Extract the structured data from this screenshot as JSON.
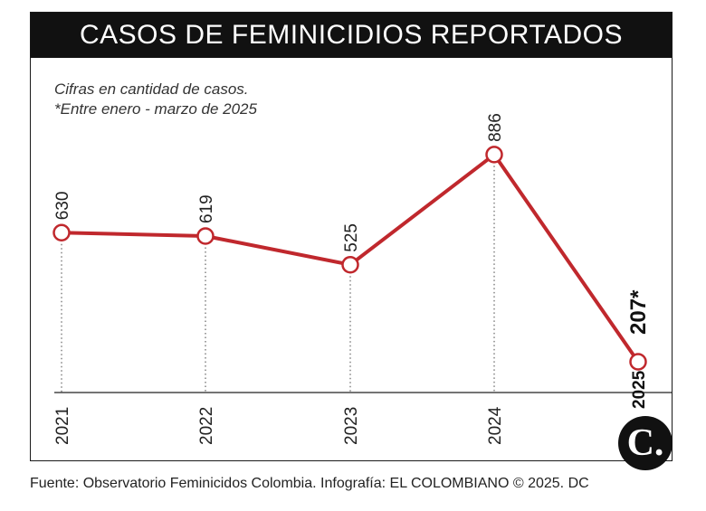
{
  "title": "CASOS DE FEMINICIDIOS REPORTADOS",
  "notes": [
    "Cifras en cantidad de casos.",
    "*Entre enero - marzo de 2025"
  ],
  "footer": "Fuente: Observatorio Feminicidos Colombia. Infografía: EL COLOMBIANO © 2025. DC",
  "logo": "C.",
  "colors": {
    "line": "#c0282d",
    "title_bg": "#111111"
  },
  "chart_data": {
    "type": "line",
    "categories": [
      "2021",
      "2022",
      "2023",
      "2024",
      "2025"
    ],
    "values": [
      630,
      619,
      525,
      886,
      207
    ],
    "value_labels": [
      "630",
      "619",
      "525",
      "886",
      "207*"
    ],
    "title": "CASOS DE FEMINICIDIOS REPORTADOS",
    "xlabel": "",
    "ylabel": "",
    "ylim": [
      0,
      1000
    ],
    "grid": false
  }
}
